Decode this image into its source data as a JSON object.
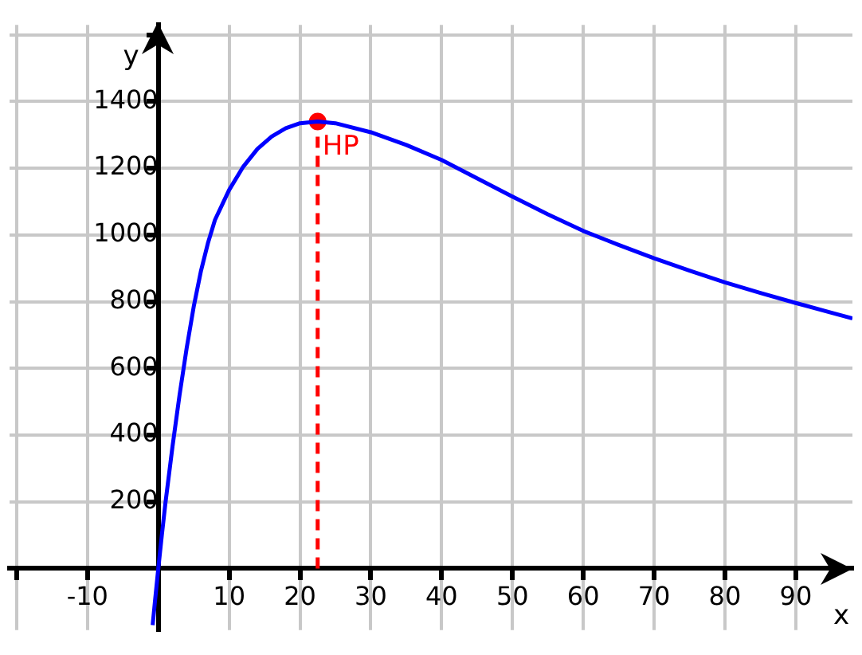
{
  "chart_data": {
    "type": "line",
    "xlabel": "x",
    "ylabel": "y",
    "xlim": [
      -21,
      98
    ],
    "ylim": [
      -185,
      1630
    ],
    "xticks": [
      {
        "value": -20,
        "label": null
      },
      -10,
      {
        "value": 0,
        "label": null
      },
      10,
      20,
      30,
      40,
      50,
      60,
      70,
      80,
      90
    ],
    "yticks": [
      {
        "value": 0,
        "label": null
      },
      200,
      400,
      600,
      800,
      1000,
      1200,
      1400,
      {
        "value": 1600,
        "label": null
      }
    ],
    "grid": true,
    "marker": "none",
    "line_style": "solid",
    "series": [
      {
        "color": "#0000ff",
        "x": [
          -0.8,
          -0.5,
          0,
          0.5,
          1,
          2,
          3,
          4,
          5,
          6,
          7,
          8,
          10,
          12,
          14,
          16,
          18,
          20,
          22.5,
          25,
          30,
          35,
          40,
          45,
          50,
          55,
          60,
          65,
          70,
          75,
          80,
          85,
          90,
          95,
          98
        ],
        "values": [
          -170,
          -105,
          0,
          100,
          195,
          365,
          520,
          660,
          785,
          890,
          975,
          1045,
          1135,
          1205,
          1258,
          1295,
          1320,
          1335,
          1340,
          1335,
          1308,
          1270,
          1225,
          1170,
          1115,
          1062,
          1012,
          970,
          930,
          893,
          858,
          826,
          796,
          767,
          750
        ]
      },
      {
        "type": "line",
        "line_style": "dashed",
        "color": "#ff0000",
        "x": [
          22.5,
          22.5
        ],
        "values": [
          0,
          1340
        ]
      },
      {
        "type": "scatter",
        "marker": "circle",
        "name": "HP",
        "color": "#ff0000",
        "x": [
          22.5
        ],
        "values": [
          1340
        ]
      }
    ]
  }
}
